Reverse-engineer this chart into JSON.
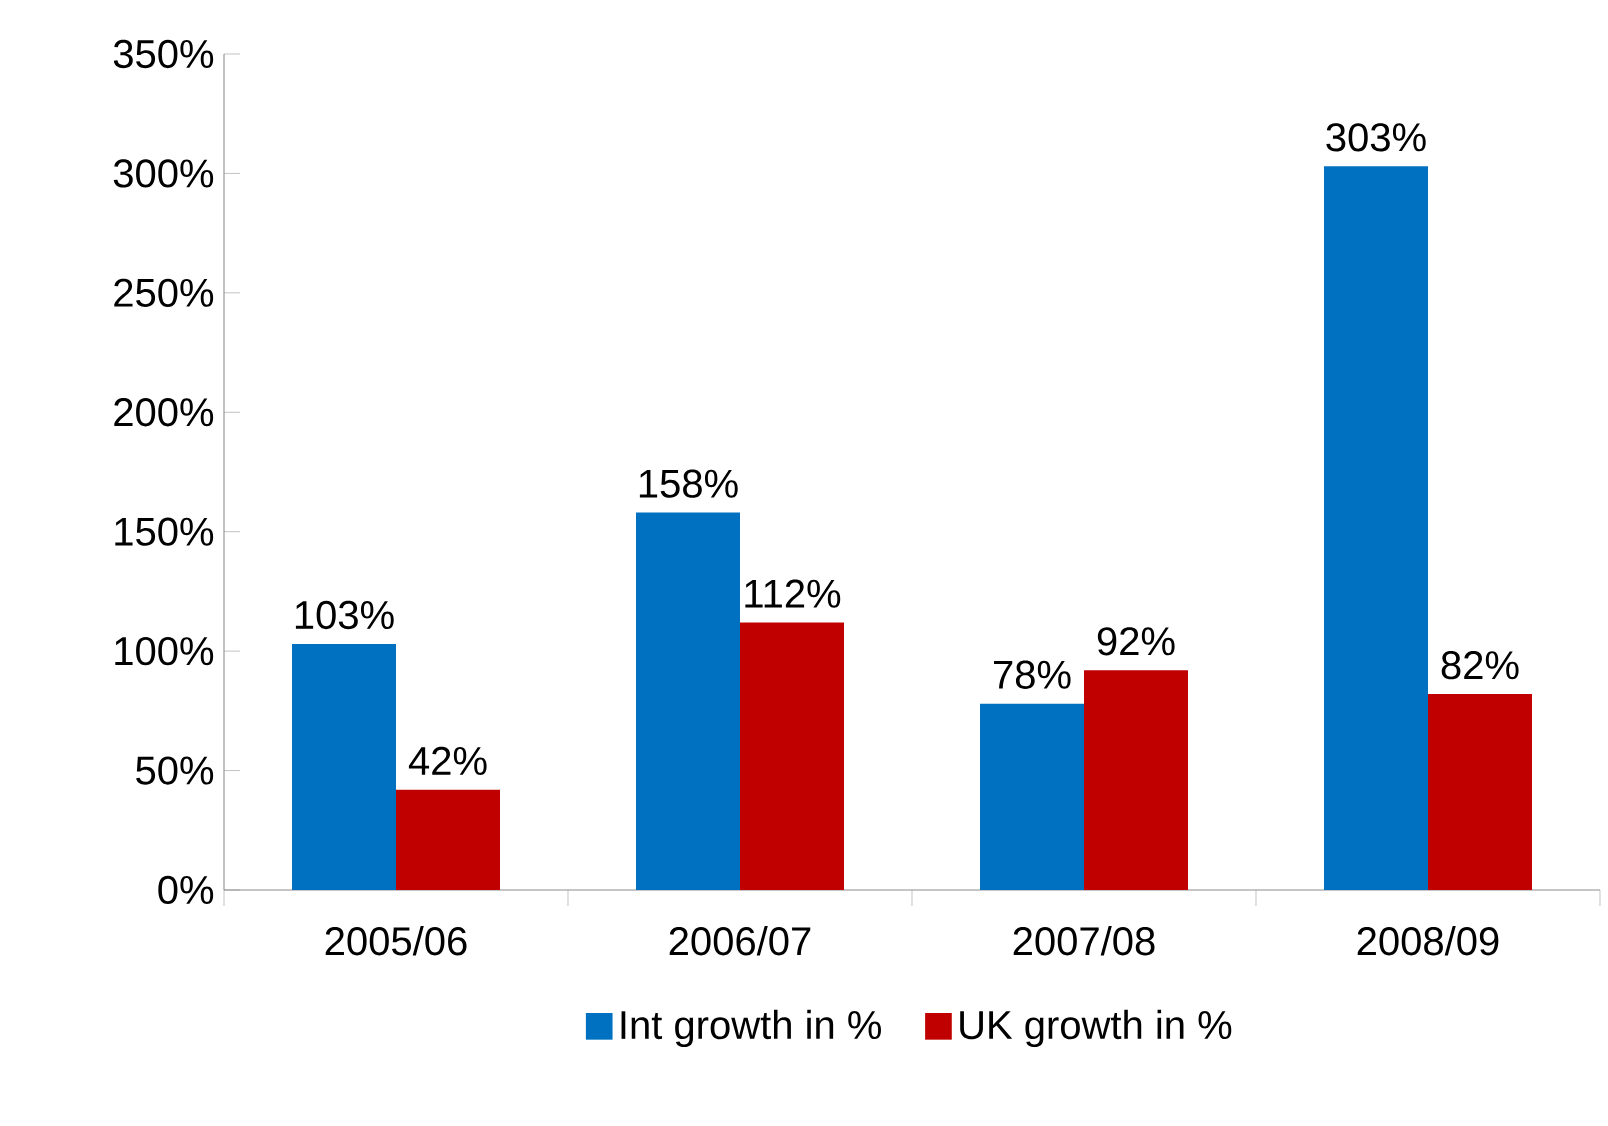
{
  "chart_data": {
    "type": "bar",
    "categories": [
      "2005/06",
      "2006/07",
      "2007/08",
      "2008/09"
    ],
    "series": [
      {
        "name": "Int growth in %",
        "color": "#0070c0",
        "values": [
          103,
          158,
          78,
          303
        ],
        "value_labels": [
          "103%",
          "158%",
          "78%",
          "303%"
        ]
      },
      {
        "name": "UK growth in %",
        "color": "#c00000",
        "values": [
          42,
          112,
          92,
          82
        ],
        "value_labels": [
          "42%",
          "112%",
          "92%",
          "82%"
        ]
      }
    ],
    "ylim": [
      0,
      350
    ],
    "yticks": [
      {
        "value": 0,
        "label": "0%"
      },
      {
        "value": 50,
        "label": "50%"
      },
      {
        "value": 100,
        "label": "100%"
      },
      {
        "value": 150,
        "label": "150%"
      },
      {
        "value": 200,
        "label": "200%"
      },
      {
        "value": 250,
        "label": "250%"
      },
      {
        "value": 300,
        "label": "300%"
      },
      {
        "value": 350,
        "label": "350%"
      }
    ],
    "legend": "bottom",
    "grid": false
  }
}
